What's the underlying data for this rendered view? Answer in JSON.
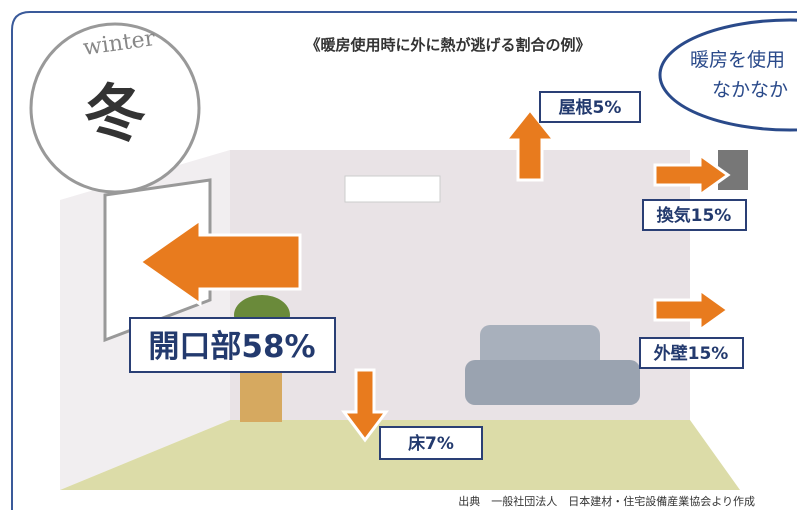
{
  "badge": {
    "season_en": "winter",
    "season_jp": "冬"
  },
  "title": "《暖房使用時に外に熱が逃げる割合の例》",
  "bubble": {
    "line1": "暖房を使用",
    "line2": "なかなか"
  },
  "labels": {
    "roof": "屋根5%",
    "ventilation": "換気15%",
    "outer_wall": "外壁15%",
    "openings": "開口部58%",
    "floor": "床7%"
  },
  "source": "出典　一般社団法人　日本建材・住宅設備産業協会より作成"
}
